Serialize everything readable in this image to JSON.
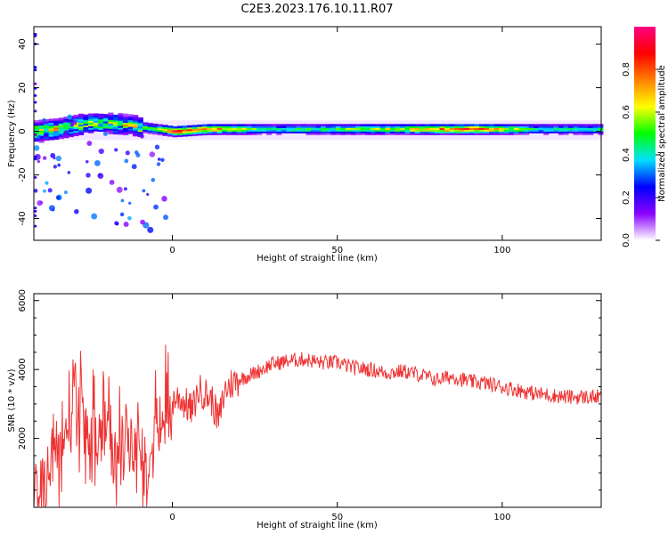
{
  "title": "C2E3.2023.176.10.11.R07",
  "chart_data": [
    {
      "type": "heatmap",
      "title": "C2E3.2023.176.10.11.R07",
      "xlabel": "Height of straight line (km)",
      "ylabel": "Frequency (Hz)",
      "xlim": [
        -42,
        130
      ],
      "ylim": [
        -50,
        48
      ],
      "x_ticks": [
        0,
        50,
        100
      ],
      "y_ticks": [
        -40,
        -20,
        0,
        20,
        40
      ],
      "colorbar": {
        "label": "Normalized spectral amplitude",
        "range": [
          0,
          1
        ],
        "ticks": [
          "0.0",
          "0.2",
          "0.4",
          "0.6",
          "0.8"
        ],
        "colors": [
          "#ffffff",
          "#8a00ff",
          "#0000ff",
          "#00e0ff",
          "#00ff00",
          "#ffff00",
          "#ff8000",
          "#ff0000",
          "#ff0080"
        ]
      },
      "ridge": [
        {
          "x": -42,
          "f": 0,
          "amp": 0.65
        },
        {
          "x": -35,
          "f": 1,
          "amp": 0.6
        },
        {
          "x": -25,
          "f": 4,
          "amp": 0.55
        },
        {
          "x": -15,
          "f": 3,
          "amp": 0.6
        },
        {
          "x": -5,
          "f": 1,
          "amp": 0.55
        },
        {
          "x": 0,
          "f": 0,
          "amp": 0.95
        },
        {
          "x": 10,
          "f": 1,
          "amp": 0.85
        },
        {
          "x": 30,
          "f": 1,
          "amp": 0.5
        },
        {
          "x": 50,
          "f": 1,
          "amp": 0.6
        },
        {
          "x": 70,
          "f": 1,
          "amp": 0.7
        },
        {
          "x": 90,
          "f": 1,
          "amp": 0.95
        },
        {
          "x": 110,
          "f": 1,
          "amp": 0.5
        },
        {
          "x": 130,
          "f": 1,
          "amp": 0.5
        }
      ]
    },
    {
      "type": "line",
      "xlabel": "Height of straight line (km)",
      "ylabel": "SNR (10 * v/v)",
      "xlim": [
        -42,
        130
      ],
      "ylim": [
        0,
        6200
      ],
      "x_ticks": [
        0,
        50,
        100
      ],
      "y_ticks": [
        2000,
        4000,
        6000
      ],
      "series": [
        {
          "color": "#ee3333",
          "x": [
            -42,
            -40,
            -38,
            -36,
            -34,
            -32,
            -30,
            -28,
            -26,
            -24,
            -22,
            -20,
            -18,
            -16,
            -14,
            -12,
            -10,
            -8,
            -6,
            -4,
            -2,
            0,
            2,
            4,
            6,
            8,
            10,
            12,
            14,
            16,
            18,
            20,
            25,
            30,
            35,
            40,
            45,
            50,
            55,
            60,
            65,
            70,
            75,
            80,
            85,
            90,
            95,
            100,
            105,
            110,
            115,
            120,
            125,
            130
          ],
          "values": [
            50,
            600,
            900,
            1500,
            1800,
            2200,
            3400,
            2500,
            1900,
            2300,
            1800,
            2600,
            1200,
            1600,
            1900,
            1500,
            2100,
            1000,
            2600,
            2400,
            2900,
            3100,
            3200,
            3000,
            2800,
            3400,
            3300,
            3100,
            2500,
            3400,
            3600,
            3700,
            3900,
            4150,
            4250,
            4300,
            4200,
            4200,
            4050,
            4000,
            3900,
            3950,
            3850,
            3700,
            3800,
            3650,
            3600,
            3500,
            3400,
            3300,
            3250,
            3200,
            3200,
            3200
          ]
        }
      ]
    }
  ]
}
